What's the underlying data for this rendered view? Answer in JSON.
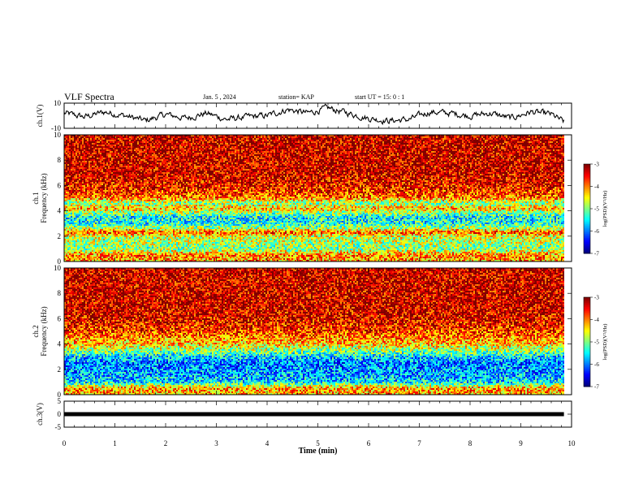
{
  "header": {
    "title": "VLF Spectra",
    "date": "Jan. 5 , 2024",
    "station": "station= KAP",
    "start": "start  UT =   15: 0  : 1"
  },
  "chart_data": [
    {
      "id": "ch1-voltage",
      "type": "line",
      "ylabel": "ch.1(V)",
      "ylim": [
        -10,
        10
      ],
      "ytick_labels": [
        "10",
        "-10"
      ],
      "xlim": [
        0,
        10
      ],
      "data_extent_x": [
        0,
        9.85
      ],
      "level_profile": [
        [
          0,
          2
        ],
        [
          0.4,
          -1
        ],
        [
          0.8,
          3
        ],
        [
          1.2,
          0
        ],
        [
          1.6,
          -4
        ],
        [
          2.0,
          1
        ],
        [
          2.4,
          -2
        ],
        [
          2.8,
          2
        ],
        [
          3.2,
          -3
        ],
        [
          3.6,
          -1
        ],
        [
          4.0,
          0
        ],
        [
          4.4,
          5
        ],
        [
          4.8,
          2
        ],
        [
          5.2,
          6
        ],
        [
          5.6,
          2
        ],
        [
          6.0,
          -2
        ],
        [
          6.4,
          -4
        ],
        [
          6.8,
          -3
        ],
        [
          7.2,
          3
        ],
        [
          7.6,
          2
        ],
        [
          8.0,
          0
        ],
        [
          8.4,
          2
        ],
        [
          8.8,
          -2
        ],
        [
          9.2,
          3
        ],
        [
          9.6,
          1
        ],
        [
          9.85,
          -5
        ]
      ]
    },
    {
      "id": "ch1-spectrogram",
      "type": "heatmap",
      "ylabel_lines": [
        "ch.1",
        "Frequency  (kHz)"
      ],
      "ylim": [
        0,
        10
      ],
      "ytick_labels": [
        "0",
        "2",
        "4",
        "6",
        "8",
        "10"
      ],
      "xlim": [
        0,
        10
      ],
      "data_extent_x": [
        0,
        9.85
      ],
      "value_label": "log(PSD)(V²/Hz)",
      "value_range": [
        -7,
        -3
      ],
      "colorbar_ticks": [
        "-3",
        "-4",
        "-5",
        "-6",
        "-7"
      ],
      "level_profile_by_freq_khz": [
        [
          0,
          -4.2
        ],
        [
          0.5,
          -4.0
        ],
        [
          1.0,
          -5.0
        ],
        [
          1.5,
          -4.8
        ],
        [
          2.0,
          -4.6
        ],
        [
          2.3,
          -3.8
        ],
        [
          2.6,
          -4.8
        ],
        [
          3.0,
          -5.4
        ],
        [
          3.5,
          -5.5
        ],
        [
          3.9,
          -4.8
        ],
        [
          4.2,
          -4.2
        ],
        [
          4.6,
          -5.0
        ],
        [
          5.0,
          -4.0
        ],
        [
          5.4,
          -3.7
        ],
        [
          6.0,
          -3.5
        ],
        [
          7.0,
          -3.3
        ],
        [
          8.5,
          -3.3
        ],
        [
          10.0,
          -3.3
        ]
      ]
    },
    {
      "id": "ch2-spectrogram",
      "type": "heatmap",
      "ylabel_lines": [
        "ch.2",
        "Frequency  (kHz)"
      ],
      "ylim": [
        0,
        10
      ],
      "ytick_labels": [
        "0",
        "2",
        "4",
        "6",
        "8",
        "10"
      ],
      "xlim": [
        0,
        10
      ],
      "data_extent_x": [
        0,
        9.85
      ],
      "value_label": "log(PSD)(V²/Hz)",
      "value_range": [
        -7,
        -3
      ],
      "colorbar_ticks": [
        "-3",
        "-4",
        "-5",
        "-6",
        "-7"
      ],
      "level_profile_by_freq_khz": [
        [
          0,
          -4.2
        ],
        [
          0.5,
          -4.1
        ],
        [
          1.0,
          -5.6
        ],
        [
          1.5,
          -5.8
        ],
        [
          2.0,
          -5.9
        ],
        [
          2.5,
          -6.0
        ],
        [
          3.0,
          -5.6
        ],
        [
          3.5,
          -4.9
        ],
        [
          4.0,
          -4.3
        ],
        [
          4.5,
          -4.0
        ],
        [
          5.0,
          -3.7
        ],
        [
          6.0,
          -3.4
        ],
        [
          7.0,
          -3.3
        ],
        [
          8.5,
          -3.3
        ],
        [
          10.0,
          -3.3
        ]
      ]
    },
    {
      "id": "ch3-voltage",
      "type": "line",
      "ylabel": "ch.3(V)",
      "ylim": [
        -5,
        5
      ],
      "ytick_labels": [
        "5",
        "0",
        "-5"
      ],
      "xlim": [
        0,
        10
      ],
      "xtick_labels": [
        "0",
        "1",
        "2",
        "3",
        "4",
        "5",
        "6",
        "7",
        "8",
        "9",
        "10"
      ],
      "xlabel": "Time  (min)",
      "data_extent_x": [
        0,
        9.85
      ],
      "y": 0
    }
  ]
}
